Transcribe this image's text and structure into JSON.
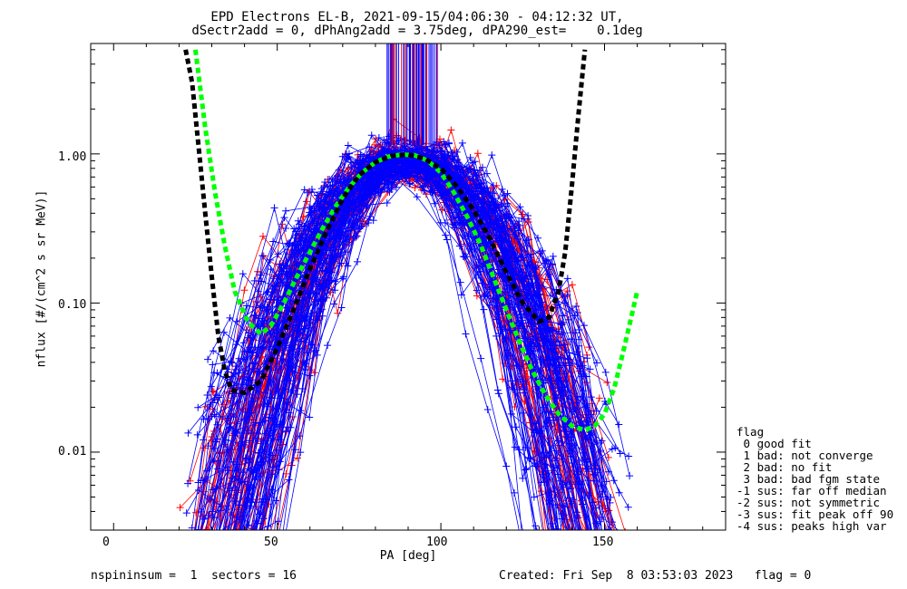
{
  "chart_data": {
    "type": "line",
    "title": "EPD Electrons EL-B, 2021-09-15/04:06:30 - 04:12:32 UT,",
    "subtitle": "dSectr2add = 0, dPhAng2add = 3.75deg, dPA290_est=    0.1deg",
    "xlabel": "PA [deg]",
    "ylabel": "nflux [#/(cm^2 s sr MeV)]",
    "x_scale": "linear",
    "y_scale": "log",
    "xlim": [
      -7,
      187
    ],
    "ylim": [
      0.003,
      5.5
    ],
    "x_ticks": [
      "0",
      "50",
      "100",
      "150"
    ],
    "x_tick_values": [
      0,
      50,
      100,
      150
    ],
    "y_ticks": [
      "1.00",
      "0.10",
      "0.01"
    ],
    "y_tick_values": [
      1.0,
      0.1,
      0.01
    ],
    "grid": false,
    "series_colors": {
      "red": "#ff0000",
      "blue": "#0000ff",
      "green": "#00ff00",
      "black": "#000000"
    },
    "series": [
      {
        "color": "#00ff00",
        "style": "dashed",
        "x": [
          25,
          28,
          31,
          34,
          37,
          41,
          45,
          48,
          52,
          56,
          60,
          64,
          68,
          72,
          76,
          80,
          84,
          88,
          92,
          96,
          100,
          104,
          108,
          112,
          116,
          120,
          124,
          128,
          132,
          136,
          140,
          144,
          147,
          150,
          153,
          156,
          160
        ],
        "y": [
          5.0,
          1.5,
          0.55,
          0.24,
          0.12,
          0.075,
          0.062,
          0.07,
          0.1,
          0.15,
          0.22,
          0.32,
          0.45,
          0.6,
          0.75,
          0.88,
          0.96,
          0.99,
          0.98,
          0.9,
          0.75,
          0.55,
          0.38,
          0.25,
          0.15,
          0.09,
          0.055,
          0.035,
          0.024,
          0.018,
          0.015,
          0.014,
          0.015,
          0.018,
          0.027,
          0.05,
          0.12
        ]
      },
      {
        "color": "#000000",
        "style": "dashed",
        "x": [
          22,
          24,
          26,
          28,
          30,
          32,
          34,
          36,
          40,
          45,
          50,
          55,
          60,
          65,
          70,
          75,
          80,
          85,
          90,
          95,
          100,
          105,
          110,
          115,
          120,
          125,
          130,
          133,
          136,
          138,
          140,
          142,
          144
        ],
        "y": [
          5.0,
          3.0,
          1.1,
          0.4,
          0.15,
          0.06,
          0.035,
          0.026,
          0.025,
          0.03,
          0.05,
          0.09,
          0.17,
          0.3,
          0.5,
          0.72,
          0.88,
          0.97,
          0.99,
          0.93,
          0.8,
          0.6,
          0.42,
          0.27,
          0.16,
          0.1,
          0.075,
          0.08,
          0.12,
          0.22,
          0.6,
          1.8,
          5.0
        ]
      }
    ],
    "random_sample_groups": {
      "red_count": 60,
      "blue_count": 110,
      "x_range": [
        20,
        160
      ],
      "peak_x": 90,
      "peak_y": 0.9
    },
    "vertical_lines": {
      "x_range": [
        83,
        99
      ],
      "y_from": 1.15,
      "y_to": 5.5
    }
  },
  "footer": {
    "left": "nspininsum =  1  sectors = 16",
    "right": "Created: Fri Sep  8 03:53:03 2023   flag = 0"
  },
  "legend": {
    "title": "flag",
    "items": [
      " 0 good fit",
      " 1 bad: not converge",
      " 2 bad: no fit",
      " 3 bad: bad fgm state",
      "-1 sus: far off median",
      "-2 sus: not symmetric",
      "-3 sus: fit peak off 90",
      "-4 sus: peaks high var"
    ]
  }
}
